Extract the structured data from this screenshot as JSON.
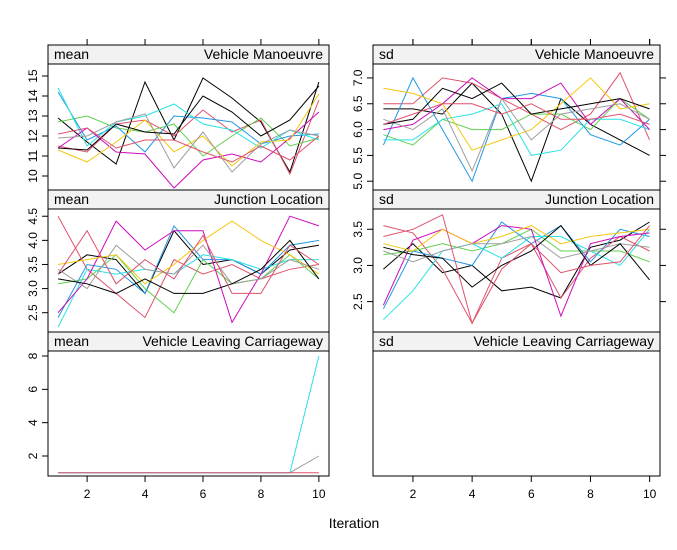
{
  "xlabel": "Iteration",
  "chart_data": [
    {
      "type": "line",
      "stat": "mean",
      "variable": "Vehicle  Manoeuvre",
      "xlim": [
        0.65,
        10.35
      ],
      "ylim": [
        9.3,
        15.6
      ],
      "xticks": [
        2,
        4,
        6,
        8,
        10
      ],
      "yticks": [
        10,
        11,
        12,
        13,
        14,
        15
      ],
      "x": [
        1,
        2,
        3,
        4,
        5,
        6,
        7,
        8,
        9,
        10
      ],
      "series": [
        {
          "color": "#000000",
          "values": [
            12.9,
            11.7,
            10.6,
            14.7,
            11.8,
            14.9,
            13.9,
            12.7,
            10.2,
            14.7
          ]
        },
        {
          "color": "#DF536B",
          "values": [
            11.5,
            11.2,
            12.6,
            12.8,
            12.0,
            13.3,
            12.2,
            12.8,
            10.1,
            13.8
          ]
        },
        {
          "color": "#61D04F",
          "values": [
            12.7,
            13.0,
            12.4,
            12.2,
            12.6,
            11.0,
            12.0,
            12.9,
            11.5,
            11.9
          ]
        },
        {
          "color": "#2297E6",
          "values": [
            14.2,
            11.8,
            12.5,
            11.2,
            13.0,
            12.9,
            12.7,
            11.6,
            12.0,
            12.1
          ]
        },
        {
          "color": "#28E2E5",
          "values": [
            14.4,
            11.5,
            12.7,
            13.0,
            13.6,
            12.6,
            12.3,
            11.4,
            12.3,
            11.8
          ]
        },
        {
          "color": "#CD0BBC",
          "values": [
            11.4,
            12.4,
            11.2,
            11.1,
            9.4,
            10.8,
            11.1,
            10.7,
            11.9,
            13.2
          ]
        },
        {
          "color": "#F5C710",
          "values": [
            11.3,
            10.7,
            11.7,
            12.8,
            11.2,
            12.0,
            10.5,
            11.7,
            11.8,
            14.1
          ]
        },
        {
          "color": "#9E9E9E",
          "values": [
            11.9,
            12.0,
            12.7,
            13.1,
            10.4,
            12.2,
            10.2,
            11.6,
            12.3,
            12.0
          ]
        },
        {
          "color": "#000000",
          "values": [
            11.4,
            11.3,
            12.6,
            12.2,
            12.1,
            14.0,
            13.2,
            12.0,
            12.8,
            14.5
          ]
        },
        {
          "color": "#DF536B",
          "values": [
            12.1,
            12.4,
            11.4,
            11.8,
            11.8,
            11.2,
            10.7,
            11.5,
            10.8,
            12.0
          ]
        }
      ]
    },
    {
      "type": "line",
      "stat": "sd",
      "variable": "Vehicle  Manoeuvre",
      "xlim": [
        0.65,
        10.35
      ],
      "ylim": [
        4.83,
        7.27
      ],
      "xticks": [
        2,
        4,
        6,
        8,
        10
      ],
      "yticks": [
        5.0,
        5.5,
        6.0,
        6.5,
        7.0
      ],
      "ytick_labels": [
        "5.0",
        "5.5",
        "6.0",
        "6.5",
        "7.0"
      ],
      "x": [
        1,
        2,
        3,
        4,
        5,
        6,
        7,
        8,
        9,
        10
      ],
      "series": [
        {
          "color": "#000000",
          "values": [
            6.4,
            6.4,
            6.3,
            6.9,
            6.3,
            5.0,
            6.6,
            6.1,
            5.8,
            5.5
          ]
        },
        {
          "color": "#DF536B",
          "values": [
            6.5,
            6.5,
            7.0,
            6.9,
            6.6,
            6.3,
            6.0,
            6.3,
            7.1,
            5.8
          ]
        },
        {
          "color": "#61D04F",
          "values": [
            5.9,
            5.7,
            6.2,
            6.0,
            6.0,
            6.3,
            6.3,
            6.0,
            6.6,
            6.2
          ]
        },
        {
          "color": "#2297E6",
          "values": [
            5.7,
            7.0,
            6.0,
            5.0,
            6.6,
            6.7,
            6.6,
            5.9,
            5.7,
            6.2
          ]
        },
        {
          "color": "#28E2E5",
          "values": [
            5.8,
            5.8,
            6.2,
            6.3,
            6.5,
            5.5,
            5.6,
            6.2,
            6.2,
            6.0
          ]
        },
        {
          "color": "#CD0BBC",
          "values": [
            6.0,
            6.1,
            6.5,
            7.0,
            6.6,
            6.6,
            6.9,
            6.1,
            6.6,
            6.0
          ]
        },
        {
          "color": "#F5C710",
          "values": [
            6.8,
            6.7,
            6.5,
            5.6,
            5.8,
            6.0,
            6.5,
            7.0,
            6.4,
            6.5
          ]
        },
        {
          "color": "#9E9E9E",
          "values": [
            6.2,
            6.0,
            6.4,
            5.2,
            6.6,
            5.8,
            6.3,
            6.4,
            6.5,
            6.2
          ]
        },
        {
          "color": "#000000",
          "values": [
            6.1,
            6.2,
            6.8,
            6.6,
            6.9,
            6.3,
            6.4,
            6.5,
            6.6,
            6.4
          ]
        },
        {
          "color": "#DF536B",
          "values": [
            6.1,
            6.3,
            6.5,
            6.5,
            6.3,
            6.5,
            6.2,
            6.2,
            6.3,
            6.1
          ]
        }
      ]
    },
    {
      "type": "line",
      "stat": "mean",
      "variable": "Junction  Location",
      "xlim": [
        0.65,
        10.35
      ],
      "ylim": [
        2.1,
        4.65
      ],
      "xticks": [
        2,
        4,
        6,
        8,
        10
      ],
      "yticks": [
        2.5,
        3.0,
        3.5,
        4.0,
        4.5
      ],
      "ytick_labels": [
        "2.5",
        "3.0",
        "3.5",
        "4.0",
        "4.5"
      ],
      "x": [
        1,
        2,
        3,
        4,
        5,
        6,
        7,
        8,
        9,
        10
      ],
      "series": [
        {
          "color": "#000000",
          "values": [
            3.3,
            3.7,
            3.6,
            2.9,
            4.2,
            3.5,
            3.6,
            3.3,
            3.8,
            3.9
          ]
        },
        {
          "color": "#DF536B",
          "values": [
            4.5,
            3.4,
            2.9,
            2.4,
            3.6,
            3.3,
            3.5,
            3.2,
            3.4,
            3.5
          ]
        },
        {
          "color": "#61D04F",
          "values": [
            3.1,
            3.2,
            3.7,
            3.0,
            2.5,
            3.6,
            3.1,
            3.2,
            3.7,
            3.2
          ]
        },
        {
          "color": "#2297E6",
          "values": [
            2.4,
            3.5,
            3.4,
            2.9,
            4.3,
            3.6,
            3.6,
            3.3,
            3.9,
            4.0
          ]
        },
        {
          "color": "#28E2E5",
          "values": [
            2.2,
            3.4,
            3.3,
            3.4,
            3.3,
            3.7,
            3.6,
            3.4,
            3.6,
            3.6
          ]
        },
        {
          "color": "#CD0BBC",
          "values": [
            2.5,
            3.2,
            4.4,
            3.8,
            4.2,
            4.2,
            2.3,
            3.3,
            4.5,
            4.3
          ]
        },
        {
          "color": "#F5C710",
          "values": [
            3.5,
            3.6,
            3.7,
            3.1,
            3.5,
            4.0,
            4.4,
            4.0,
            3.7,
            3.3
          ]
        },
        {
          "color": "#9E9E9E",
          "values": [
            3.4,
            3.0,
            3.9,
            3.4,
            3.3,
            3.9,
            3.1,
            3.2,
            3.6,
            3.4
          ]
        },
        {
          "color": "#000000",
          "values": [
            3.2,
            3.1,
            2.9,
            3.2,
            2.9,
            2.9,
            3.1,
            3.4,
            4.0,
            3.2
          ]
        },
        {
          "color": "#DF536B",
          "values": [
            3.3,
            4.2,
            3.1,
            3.6,
            3.2,
            4.1,
            2.9,
            2.9,
            3.9,
            3.5
          ]
        }
      ]
    },
    {
      "type": "line",
      "stat": "sd",
      "variable": "Junction  Location",
      "xlim": [
        0.65,
        10.35
      ],
      "ylim": [
        2.08,
        3.78
      ],
      "xticks": [
        2,
        4,
        6,
        8,
        10
      ],
      "yticks": [
        2.5,
        3.0,
        3.5
      ],
      "ytick_labels": [
        "2.5",
        "3.0",
        "3.5"
      ],
      "x": [
        1,
        2,
        3,
        4,
        5,
        6,
        7,
        8,
        9,
        10
      ],
      "series": [
        {
          "color": "#000000",
          "values": [
            2.95,
            3.3,
            2.9,
            3.0,
            2.65,
            2.7,
            2.55,
            3.25,
            3.35,
            3.6
          ]
        },
        {
          "color": "#DF536B",
          "values": [
            3.55,
            3.45,
            2.95,
            2.2,
            3.1,
            3.3,
            2.55,
            3.1,
            3.4,
            3.2
          ]
        },
        {
          "color": "#61D04F",
          "values": [
            3.15,
            3.2,
            3.3,
            3.2,
            3.3,
            3.5,
            3.2,
            3.2,
            3.2,
            3.05
          ]
        },
        {
          "color": "#2297E6",
          "values": [
            2.4,
            3.2,
            3.1,
            3.0,
            3.6,
            3.3,
            3.55,
            3.05,
            3.5,
            3.4
          ]
        },
        {
          "color": "#28E2E5",
          "values": [
            2.25,
            2.65,
            3.2,
            3.3,
            3.1,
            3.4,
            3.4,
            3.2,
            3.0,
            3.5
          ]
        },
        {
          "color": "#CD0BBC",
          "values": [
            2.45,
            3.35,
            3.5,
            3.3,
            3.55,
            3.5,
            2.3,
            3.3,
            3.4,
            3.45
          ]
        },
        {
          "color": "#F5C710",
          "values": [
            3.3,
            3.2,
            3.5,
            3.3,
            3.4,
            3.55,
            3.3,
            3.4,
            3.45,
            3.5
          ]
        },
        {
          "color": "#9E9E9E",
          "values": [
            3.2,
            3.05,
            3.2,
            3.3,
            3.3,
            3.4,
            3.1,
            3.2,
            3.3,
            3.25
          ]
        },
        {
          "color": "#000000",
          "values": [
            3.25,
            3.15,
            3.1,
            2.7,
            3.0,
            3.2,
            3.55,
            3.0,
            3.3,
            2.8
          ]
        },
        {
          "color": "#DF536B",
          "values": [
            3.4,
            3.5,
            3.7,
            2.2,
            2.95,
            3.3,
            2.9,
            3.0,
            3.05,
            3.55
          ]
        }
      ]
    },
    {
      "type": "line",
      "stat": "mean",
      "variable": "Vehicle  Leaving  Carriageway",
      "xlim": [
        0.65,
        10.35
      ],
      "ylim": [
        0.8,
        8.3
      ],
      "xticks": [
        2,
        4,
        6,
        8,
        10
      ],
      "yticks": [
        2,
        4,
        6,
        8
      ],
      "x": [
        1,
        2,
        3,
        4,
        5,
        6,
        7,
        8,
        9,
        10
      ],
      "series": [
        {
          "color": "#9E9E9E",
          "values": [
            1,
            1,
            1,
            1,
            1,
            1,
            1,
            1,
            1,
            2
          ]
        },
        {
          "color": "#28E2E5",
          "values": [
            1,
            1,
            1,
            1,
            1,
            1,
            1,
            1,
            1,
            8
          ]
        },
        {
          "color": "#DF536B",
          "values": [
            1,
            1,
            1,
            1,
            1,
            1,
            1,
            1,
            1,
            1
          ]
        }
      ]
    },
    {
      "type": "line",
      "stat": "sd",
      "variable": "Vehicle  Leaving  Carriageway",
      "xlim": [
        0.65,
        10.35
      ],
      "ylim": [
        0,
        1
      ],
      "xticks": [
        2,
        4,
        6,
        8,
        10
      ],
      "yticks": [],
      "x": [
        1,
        2,
        3,
        4,
        5,
        6,
        7,
        8,
        9,
        10
      ],
      "series": []
    }
  ]
}
